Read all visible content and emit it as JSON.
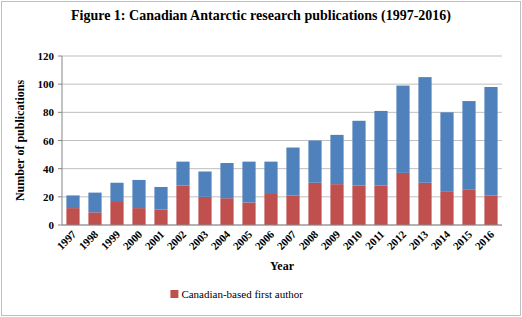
{
  "chart_data": {
    "type": "bar",
    "stacked": true,
    "grid": true,
    "legend": "bottom",
    "title": "Figure 1: Canadian Antarctic research publications (1997-2016)",
    "x_label": "Year",
    "y_label": "Number of publications",
    "categories": [
      "1997",
      "1998",
      "1999",
      "2000",
      "2001",
      "2002",
      "2003",
      "2004",
      "2005",
      "2006",
      "2007",
      "2008",
      "2009",
      "2010",
      "2011",
      "2012",
      "2013",
      "2014",
      "2015",
      "2016"
    ],
    "series": [
      {
        "name": "Canadian-based first author",
        "color": "#c0504d",
        "values": [
          12,
          9,
          17,
          12,
          11,
          28,
          20,
          19,
          16,
          22,
          21,
          30,
          29,
          28,
          28,
          37,
          30,
          24,
          25,
          21
        ]
      },
      {
        "color": "#4f81bd",
        "values": [
          9,
          14,
          13,
          20,
          16,
          17,
          18,
          25,
          29,
          23,
          34,
          30,
          35,
          46,
          53,
          62,
          75,
          56,
          63,
          77
        ]
      }
    ],
    "ylim": [
      0,
      120
    ],
    "yticks": [
      0,
      20,
      40,
      60,
      80,
      100,
      120
    ]
  }
}
